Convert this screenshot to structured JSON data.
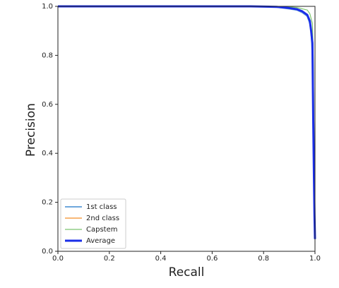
{
  "chart_data": {
    "type": "line",
    "xlabel": "Recall",
    "ylabel": "Precision",
    "x": [
      0,
      0.5,
      0.75,
      0.85,
      0.9,
      0.93,
      0.95,
      0.97,
      0.98,
      0.985,
      0.99,
      0.993,
      0.996,
      0.998,
      1
    ],
    "series": [
      {
        "name": "1st class",
        "color": "#6fa8dc",
        "width": 2,
        "values": [
          1,
          1,
          1,
          0.997,
          0.99,
          0.985,
          0.975,
          0.96,
          0.93,
          0.9,
          0.8,
          0.5,
          0.3,
          0.15,
          0.05
        ]
      },
      {
        "name": "2nd class",
        "color": "#f5a04a",
        "width": 1.5,
        "values": [
          1,
          1,
          1,
          0.998,
          0.995,
          0.99,
          0.98,
          0.965,
          0.94,
          0.9,
          0.82,
          0.6,
          0.35,
          0.15,
          0.05
        ]
      },
      {
        "name": "Capstem",
        "color": "#7cc46f",
        "width": 1.2,
        "values": [
          1,
          1,
          1,
          0.999,
          0.998,
          0.995,
          0.99,
          0.985,
          0.97,
          0.95,
          0.93,
          0.8,
          0.5,
          0.3,
          0.1
        ]
      },
      {
        "name": "Average",
        "color": "#1a2ee8",
        "width": 3,
        "values": [
          1,
          1,
          1,
          0.998,
          0.993,
          0.988,
          0.98,
          0.965,
          0.94,
          0.9,
          0.85,
          0.55,
          0.3,
          0.15,
          0.05
        ]
      }
    ],
    "xlim": [
      0,
      1
    ],
    "ylim": [
      0,
      1
    ],
    "xticks": [
      {
        "value": 0,
        "label": "0.0"
      },
      0.2,
      0.4,
      0.6,
      0.8,
      {
        "value": 1,
        "label": "1.0"
      }
    ],
    "yticks": [
      {
        "value": 0,
        "label": "0.0"
      },
      0.2,
      0.4,
      0.6,
      0.8,
      {
        "value": 1,
        "label": "1.0"
      }
    ],
    "legend": "lower left"
  }
}
